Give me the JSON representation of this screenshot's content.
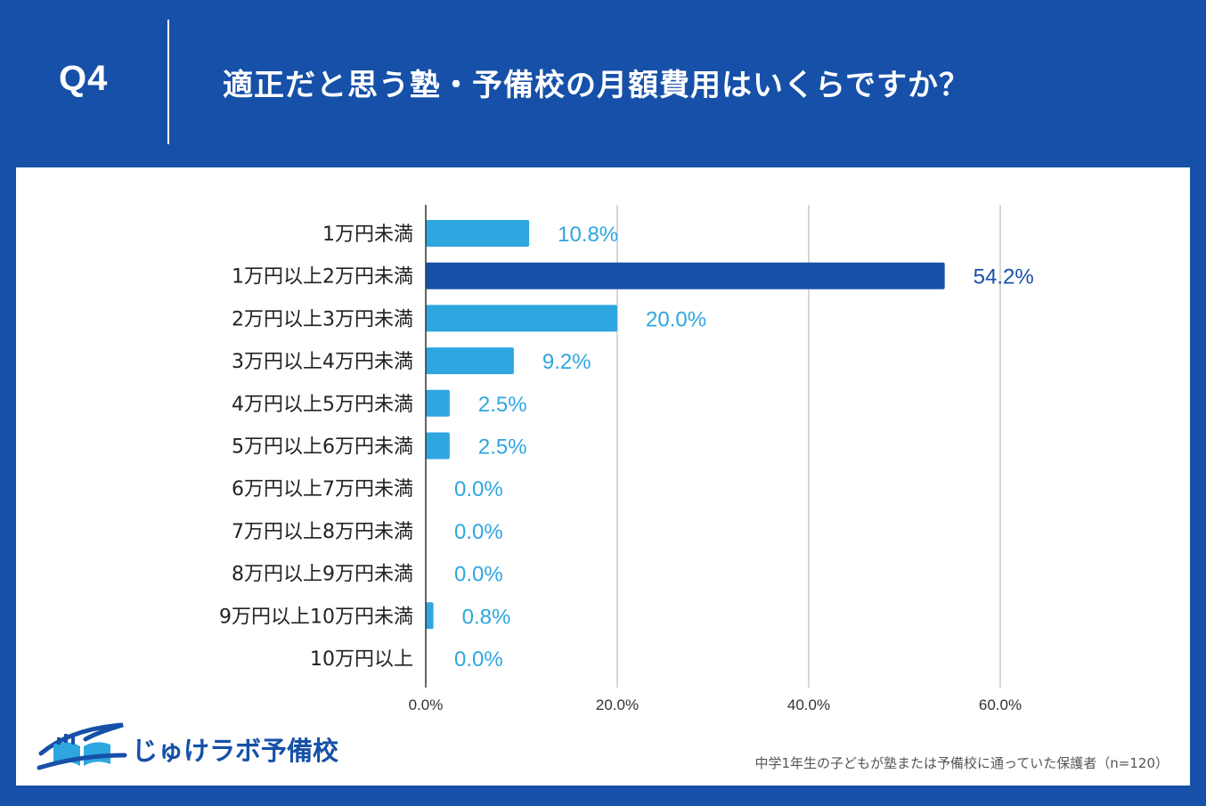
{
  "header": {
    "question": "Q4",
    "title": "適正だと思う塾・予備校の月額費用はいくらですか？"
  },
  "colors": {
    "background": "#1650a8",
    "bar": "#2ea6e0",
    "bar_highlight": "#1650a8",
    "grid": "#c8c8c8"
  },
  "chart_data": {
    "type": "bar",
    "orientation": "horizontal",
    "categories": [
      "1万円未満",
      "1万円以上2万円未満",
      "2万円以上3万円未満",
      "3万円以上4万円未満",
      "4万円以上5万円未満",
      "5万円以上6万円未満",
      "6万円以上7万円未満",
      "7万円以上8万円未満",
      "8万円以上9万円未満",
      "9万円以上10万円未満",
      "10万円以上"
    ],
    "values": [
      10.8,
      54.2,
      20.0,
      9.2,
      2.5,
      2.5,
      0.0,
      0.0,
      0.0,
      0.8,
      0.0
    ],
    "value_labels": [
      "10.8%",
      "54.2%",
      "20.0%",
      "9.2%",
      "2.5%",
      "2.5%",
      "0.0%",
      "0.0%",
      "0.0%",
      "0.8%",
      "0.0%"
    ],
    "highlight_index": 1,
    "xlim": [
      0,
      60
    ],
    "x_ticks": [
      0,
      20,
      40,
      60
    ],
    "x_tick_labels": [
      "0.0%",
      "20.0%",
      "40.0%",
      "60.0%"
    ],
    "grid": true,
    "unit": "%"
  },
  "footer": {
    "logo_text": "じゅけラボ予備校",
    "note": "中学1年生の子どもが塾または予備校に通っていた保護者（n=120）"
  }
}
